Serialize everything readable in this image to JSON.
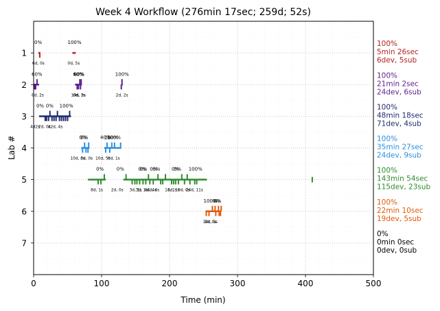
{
  "chart_data": {
    "type": "scatter",
    "title": "Week 4 Workflow (276min 17sec; 259d; 52s)",
    "xlabel": "Time (min)",
    "ylabel": "Lab #",
    "xlim": [
      0,
      500
    ],
    "ylim": [
      8,
      0
    ],
    "xticks": [
      0,
      100,
      200,
      300,
      400,
      500
    ],
    "yticks": [
      1,
      2,
      3,
      4,
      5,
      6,
      7
    ],
    "grid": "dotted",
    "lanes": [
      {
        "lab": 1,
        "color": "#b22222",
        "summary": [
          "100%",
          "5min 26sec",
          "6dev, 5sub"
        ],
        "segments": [
          [
            7,
            10
          ],
          [
            57,
            62
          ]
        ],
        "ticks": [
          {
            "t": 9,
            "dir": "down"
          }
        ],
        "above": [
          {
            "t": 1,
            "text": "0%"
          },
          {
            "t": 50,
            "text": "100%"
          }
        ],
        "below": [
          {
            "t": -2,
            "text": "6d, 0s"
          },
          {
            "t": 50,
            "text": "0d, 5s"
          }
        ]
      },
      {
        "lab": 2,
        "color": "#5b1f8c",
        "summary": [
          "100%",
          "21min 2sec",
          "24dev, 6sub"
        ],
        "segments": [
          [
            0,
            8
          ],
          [
            61,
            71
          ],
          [
            129,
            131
          ]
        ],
        "ticks": [
          {
            "t": 1,
            "dir": "down"
          },
          {
            "t": 2,
            "dir": "down"
          },
          {
            "t": 3,
            "dir": "down"
          },
          {
            "t": 5,
            "dir": "up"
          },
          {
            "t": 64,
            "dir": "down"
          },
          {
            "t": 66,
            "dir": "down"
          },
          {
            "t": 68,
            "dir": "up"
          },
          {
            "t": 69,
            "dir": "down"
          },
          {
            "t": 70,
            "dir": "up"
          },
          {
            "t": 129,
            "dir": "down"
          },
          {
            "t": 130,
            "dir": "up"
          }
        ],
        "above": [
          {
            "t": -3,
            "text": "60%"
          },
          {
            "t": 58,
            "text": "60%"
          },
          {
            "t": 59,
            "text": "60%"
          },
          {
            "t": 120,
            "text": "100%"
          }
        ],
        "below": [
          {
            "t": -3,
            "text": "8d, 2s"
          },
          {
            "t": 55,
            "text": "10d, 3s"
          },
          {
            "t": 58,
            "text": "0d, 1s"
          },
          {
            "t": 121,
            "text": "2d, 2s"
          }
        ]
      },
      {
        "lab": 3,
        "color": "#1f2a6b",
        "summary": [
          "100%",
          "48min 18sec",
          "71dev, 4sub"
        ],
        "segments": [
          [
            8,
            55
          ]
        ],
        "ticks": [
          {
            "t": 17,
            "dir": "down"
          },
          {
            "t": 19,
            "dir": "down"
          },
          {
            "t": 22,
            "dir": "down"
          },
          {
            "t": 24,
            "dir": "up"
          },
          {
            "t": 27,
            "dir": "down"
          },
          {
            "t": 30,
            "dir": "down"
          },
          {
            "t": 33,
            "dir": "down"
          },
          {
            "t": 35,
            "dir": "up"
          },
          {
            "t": 38,
            "dir": "down"
          },
          {
            "t": 41,
            "dir": "down"
          },
          {
            "t": 44,
            "dir": "down"
          },
          {
            "t": 47,
            "dir": "down"
          },
          {
            "t": 50,
            "dir": "down"
          },
          {
            "t": 53,
            "dir": "up"
          }
        ],
        "above": [
          {
            "t": 4,
            "text": "0%"
          },
          {
            "t": 18,
            "text": "0%"
          },
          {
            "t": 38,
            "text": "100%"
          }
        ],
        "below": [
          {
            "t": -5,
            "text": "4d2s"
          },
          {
            "t": 7,
            "text": "2d, 0s"
          },
          {
            "t": 21,
            "text": "42d, 4s"
          }
        ]
      },
      {
        "lab": 4,
        "color": "#2b8fe0",
        "summary": [
          "100%",
          "35min 27sec",
          "24dev, 9sub"
        ],
        "segments": [
          [
            70,
            82
          ],
          [
            104,
            129
          ]
        ],
        "ticks": [
          {
            "t": 72,
            "dir": "down"
          },
          {
            "t": 75,
            "dir": "up"
          },
          {
            "t": 77,
            "dir": "down"
          },
          {
            "t": 80,
            "dir": "down"
          },
          {
            "t": 81,
            "dir": "up"
          },
          {
            "t": 106,
            "dir": "down"
          },
          {
            "t": 108,
            "dir": "up"
          },
          {
            "t": 112,
            "dir": "down"
          },
          {
            "t": 115,
            "dir": "up"
          },
          {
            "t": 119,
            "dir": "up"
          },
          {
            "t": 128,
            "dir": "up"
          }
        ],
        "above": [
          {
            "t": 67,
            "text": "0%"
          },
          {
            "t": 69,
            "text": "0%"
          },
          {
            "t": 98,
            "text": "40%"
          },
          {
            "t": 104,
            "text": "100%"
          },
          {
            "t": 108,
            "text": "100%"
          }
        ],
        "below": [
          {
            "t": 54,
            "text": "10d, 3s"
          },
          {
            "t": 69,
            "text": "6d, 0s"
          },
          {
            "t": 91,
            "text": "10d, 5s"
          },
          {
            "t": 109,
            "text": "0d, 1s"
          }
        ]
      },
      {
        "lab": 5,
        "color": "#2e8b2e",
        "summary": [
          "100%",
          "143min 54sec",
          "115dev, 23sub"
        ],
        "segments": [
          [
            80,
            106
          ],
          [
            132,
            255
          ]
        ],
        "ticks": [
          {
            "t": 95,
            "dir": "down"
          },
          {
            "t": 99,
            "dir": "down"
          },
          {
            "t": 104,
            "dir": "up"
          },
          {
            "t": 136,
            "dir": "up"
          },
          {
            "t": 145,
            "dir": "down"
          },
          {
            "t": 149,
            "dir": "down"
          },
          {
            "t": 152,
            "dir": "down"
          },
          {
            "t": 156,
            "dir": "down"
          },
          {
            "t": 161,
            "dir": "down"
          },
          {
            "t": 165,
            "dir": "down"
          },
          {
            "t": 169,
            "dir": "up"
          },
          {
            "t": 171,
            "dir": "down"
          },
          {
            "t": 176,
            "dir": "down"
          },
          {
            "t": 183,
            "dir": "up"
          },
          {
            "t": 187,
            "dir": "down"
          },
          {
            "t": 190,
            "dir": "down"
          },
          {
            "t": 194,
            "dir": "up"
          },
          {
            "t": 203,
            "dir": "down"
          },
          {
            "t": 206,
            "dir": "down"
          },
          {
            "t": 209,
            "dir": "down"
          },
          {
            "t": 213,
            "dir": "down"
          },
          {
            "t": 218,
            "dir": "up"
          },
          {
            "t": 222,
            "dir": "down"
          },
          {
            "t": 226,
            "dir": "up"
          },
          {
            "t": 230,
            "dir": "down"
          },
          {
            "t": 237,
            "dir": "down"
          },
          {
            "t": 240,
            "dir": "down"
          },
          {
            "t": 410,
            "dir": "both"
          }
        ],
        "above": [
          {
            "t": 92,
            "text": "0%"
          },
          {
            "t": 122,
            "text": "0%"
          },
          {
            "t": 154,
            "text": "0%"
          },
          {
            "t": 156,
            "text": "0%"
          },
          {
            "t": 171,
            "text": "0%"
          },
          {
            "t": 175,
            "text": "0%"
          },
          {
            "t": 203,
            "text": "0%"
          },
          {
            "t": 206,
            "text": "0%"
          },
          {
            "t": 228,
            "text": "100%"
          }
        ],
        "below": [
          {
            "t": 84,
            "text": "8d, 1s"
          },
          {
            "t": 114,
            "text": "2d, 0s"
          },
          {
            "t": 141,
            "text": "3d, 1s"
          },
          {
            "t": 150,
            "text": "3d, 1s"
          },
          {
            "t": 163,
            "text": "4d, 4s"
          },
          {
            "t": 167,
            "text": "4d, 4s"
          },
          {
            "t": 193,
            "text": "1d, 1s"
          },
          {
            "t": 197,
            "text": "1d, 1s"
          },
          {
            "t": 212,
            "text": "0d, 0s"
          },
          {
            "t": 224,
            "text": "24d, 11s"
          }
        ]
      },
      {
        "lab": 6,
        "color": "#e05a0c",
        "summary": [
          "100%",
          "22min 10sec",
          "19dev, 5sub"
        ],
        "segments": [
          [
            253,
            276
          ]
        ],
        "ticks": [
          {
            "t": 254,
            "dir": "down"
          },
          {
            "t": 258,
            "dir": "down"
          },
          {
            "t": 263,
            "dir": "up"
          },
          {
            "t": 267,
            "dir": "up"
          },
          {
            "t": 268,
            "dir": "down"
          },
          {
            "t": 272,
            "dir": "up"
          },
          {
            "t": 273,
            "dir": "down"
          },
          {
            "t": 275,
            "dir": "down"
          },
          {
            "t": 276,
            "dir": "up"
          }
        ],
        "above": [
          {
            "t": 250,
            "text": "100%"
          },
          {
            "t": 263,
            "text": "0%"
          },
          {
            "t": 265,
            "text": "0%"
          }
        ],
        "below": [
          {
            "t": 249,
            "text": "18d, 5s"
          },
          {
            "t": 251,
            "text": "1d, 0s"
          }
        ]
      },
      {
        "lab": 7,
        "color": "#000000",
        "summary": [
          "0%",
          "0min 0sec",
          "0dev, 0sub"
        ],
        "segments": [],
        "ticks": [],
        "above": [],
        "below": []
      }
    ]
  }
}
